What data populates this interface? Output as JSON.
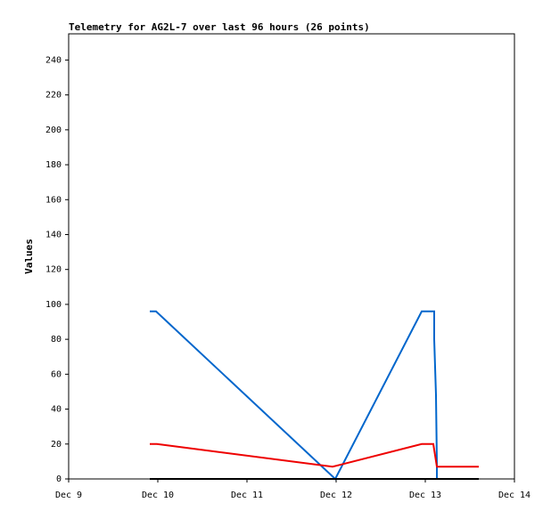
{
  "chart_data": {
    "type": "line",
    "title": "Telemetry for AG2L-7 over last 96 hours (26 points)",
    "y_label": "Values",
    "xlim": [
      9,
      14
    ],
    "xticks": [
      {
        "value": 9,
        "label": "Dec 9"
      },
      {
        "value": 10,
        "label": "Dec 10"
      },
      {
        "value": 11,
        "label": "Dec 11"
      },
      {
        "value": 12,
        "label": "Dec 12"
      },
      {
        "value": 13,
        "label": "Dec 13"
      },
      {
        "value": 14,
        "label": "Dec 14"
      }
    ],
    "ylim": [
      0,
      255
    ],
    "yticks": [
      0,
      20,
      40,
      60,
      80,
      100,
      120,
      140,
      160,
      180,
      200,
      220,
      240
    ],
    "series": [
      {
        "color": "#0066cc",
        "x": [
          9.91,
          9.98,
          11.99,
          12.96,
          13.1,
          13.1,
          13.12,
          13.13,
          13.13
        ],
        "values": [
          96,
          96,
          0,
          96,
          96,
          80,
          48,
          9,
          0
        ]
      },
      {
        "color": "#ee0000",
        "x": [
          9.91,
          9.99,
          11.96,
          12.96,
          13.09,
          13.13,
          13.6
        ],
        "values": [
          20,
          20,
          7,
          20,
          20,
          7,
          7
        ]
      },
      {
        "color": "#000000",
        "x": [
          9.91,
          13.6
        ],
        "values": [
          0,
          0
        ]
      }
    ]
  }
}
